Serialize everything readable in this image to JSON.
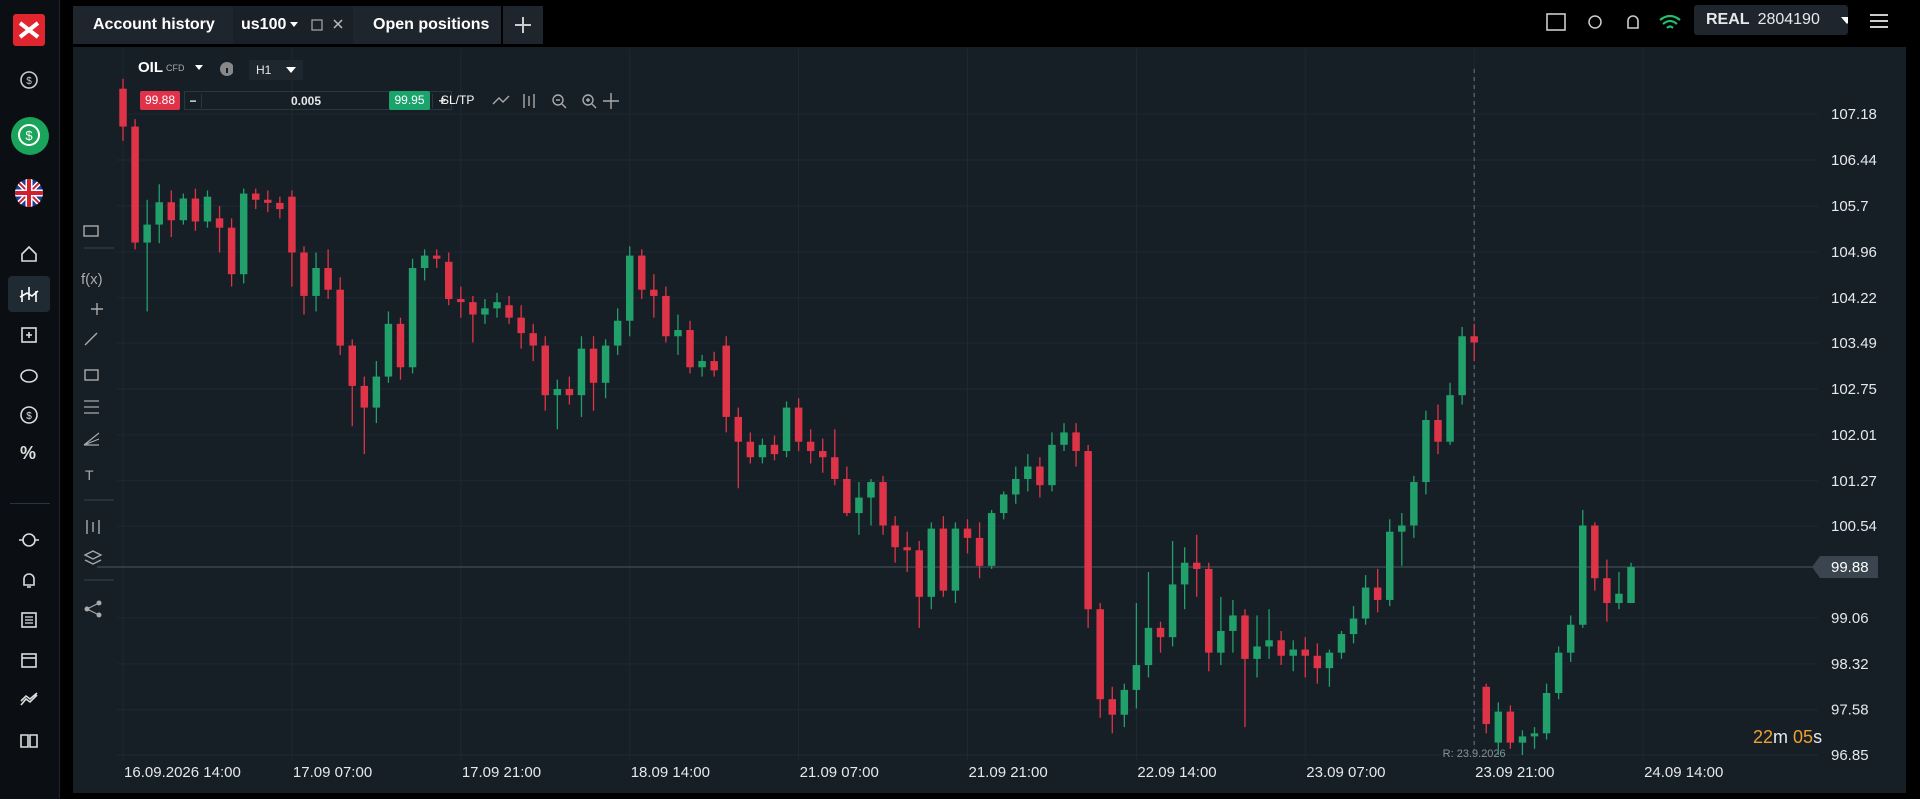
{
  "topbar": {
    "tabs": [
      "Account history",
      "us100",
      "Open positions"
    ],
    "account_type": "REAL",
    "account_number": "2804190"
  },
  "chart_header": {
    "symbol": "OIL",
    "instrument": "CFD",
    "timeframe": "H1",
    "sell_price": "99.88",
    "volume": "0.005",
    "buy_price": "99.95",
    "sltp": "SL/TP"
  },
  "toolbar": {
    "functions": "f(x)",
    "text_tool": "T"
  },
  "sidebar": {
    "percent": "%"
  },
  "chart_data": {
    "type": "candlestick",
    "up_color": "#22a06b",
    "down_color": "#df3448",
    "grid": true,
    "ylim": [
      96.77,
      108.23
    ],
    "yticks": [
      107.18,
      106.44,
      105.7,
      104.96,
      104.22,
      103.49,
      102.75,
      102.01,
      101.27,
      100.54,
      99.06,
      98.32,
      97.58,
      96.85
    ],
    "xlim": [
      -0.5,
      140.5
    ],
    "xticks": [
      {
        "value": 0,
        "label": "16.09.2026 14:00"
      },
      {
        "value": 14,
        "label": "17.09 07:00"
      },
      {
        "value": 28,
        "label": "17.09 21:00"
      },
      {
        "value": 42,
        "label": "18.09 14:00"
      },
      {
        "value": 56,
        "label": "21.09 07:00"
      },
      {
        "value": 70,
        "label": "21.09 21:00"
      },
      {
        "value": 84,
        "label": "22.09 14:00"
      },
      {
        "value": 98,
        "label": "23.09 07:00"
      },
      {
        "value": 112,
        "label": "23.09 21:00"
      },
      {
        "value": 126,
        "label": "24.09 14:00"
      }
    ],
    "current_price": 99.88,
    "rollover": {
      "x": 112,
      "label": "R: 23.9.2026"
    },
    "countdown": [
      "22",
      "m ",
      "05",
      "s"
    ],
    "ohlc": [
      [
        107.59,
        107.75,
        106.75,
        106.98
      ],
      [
        106.98,
        107.1,
        105.0,
        105.11
      ],
      [
        105.11,
        105.8,
        104.0,
        105.4
      ],
      [
        105.4,
        106.05,
        105.1,
        105.76
      ],
      [
        105.76,
        105.95,
        105.2,
        105.47
      ],
      [
        105.47,
        105.9,
        105.4,
        105.82
      ],
      [
        105.82,
        105.98,
        105.3,
        105.45
      ],
      [
        105.45,
        105.95,
        105.35,
        105.85
      ],
      [
        105.5,
        105.7,
        104.95,
        105.35
      ],
      [
        105.35,
        105.5,
        104.4,
        104.6
      ],
      [
        104.6,
        105.98,
        104.45,
        105.9
      ],
      [
        105.9,
        105.98,
        105.65,
        105.8
      ],
      [
        105.8,
        105.95,
        105.6,
        105.75
      ],
      [
        105.75,
        105.85,
        105.5,
        105.65
      ],
      [
        105.85,
        105.95,
        104.4,
        104.95
      ],
      [
        104.95,
        105.05,
        103.95,
        104.25
      ],
      [
        104.25,
        104.95,
        104.0,
        104.7
      ],
      [
        104.7,
        105.0,
        104.2,
        104.35
      ],
      [
        104.35,
        104.55,
        103.3,
        103.45
      ],
      [
        103.45,
        103.55,
        102.15,
        102.8
      ],
      [
        102.8,
        102.95,
        101.7,
        102.45
      ],
      [
        102.45,
        103.2,
        102.2,
        102.95
      ],
      [
        102.95,
        104.0,
        102.85,
        103.8
      ],
      [
        103.8,
        103.9,
        102.9,
        103.1
      ],
      [
        103.1,
        104.85,
        103.0,
        104.7
      ],
      [
        104.7,
        105.0,
        104.5,
        104.9
      ],
      [
        104.9,
        105.0,
        104.7,
        104.85
      ],
      [
        104.8,
        104.95,
        104.1,
        104.2
      ],
      [
        104.2,
        104.4,
        103.9,
        104.15
      ],
      [
        104.15,
        104.25,
        103.5,
        103.95
      ],
      [
        103.95,
        104.2,
        103.8,
        104.05
      ],
      [
        104.05,
        104.3,
        103.9,
        104.15
      ],
      [
        104.1,
        104.25,
        103.8,
        103.9
      ],
      [
        103.9,
        104.1,
        103.4,
        103.65
      ],
      [
        103.65,
        103.8,
        103.2,
        103.45
      ],
      [
        103.45,
        103.6,
        102.4,
        102.65
      ],
      [
        102.65,
        102.9,
        102.1,
        102.75
      ],
      [
        102.75,
        102.95,
        102.5,
        102.65
      ],
      [
        102.65,
        103.6,
        102.3,
        103.4
      ],
      [
        103.4,
        103.6,
        102.4,
        102.85
      ],
      [
        102.85,
        103.55,
        102.6,
        103.45
      ],
      [
        103.45,
        104.05,
        103.3,
        103.85
      ],
      [
        103.85,
        105.05,
        103.6,
        104.9
      ],
      [
        104.9,
        105.0,
        104.2,
        104.35
      ],
      [
        104.35,
        104.6,
        103.9,
        104.25
      ],
      [
        104.25,
        104.4,
        103.5,
        103.6
      ],
      [
        103.6,
        103.95,
        103.3,
        103.7
      ],
      [
        103.7,
        103.85,
        103.0,
        103.1
      ],
      [
        103.1,
        103.3,
        102.95,
        103.2
      ],
      [
        103.2,
        103.35,
        102.95,
        103.05
      ],
      [
        103.45,
        103.6,
        102.05,
        102.3
      ],
      [
        102.3,
        102.45,
        101.15,
        101.9
      ],
      [
        101.9,
        102.05,
        101.55,
        101.65
      ],
      [
        101.65,
        101.95,
        101.55,
        101.85
      ],
      [
        101.85,
        102.0,
        101.6,
        101.7
      ],
      [
        101.75,
        102.55,
        101.65,
        102.45
      ],
      [
        102.45,
        102.6,
        101.75,
        101.9
      ],
      [
        101.9,
        102.1,
        101.55,
        101.75
      ],
      [
        101.75,
        101.95,
        101.4,
        101.65
      ],
      [
        101.65,
        102.1,
        101.2,
        101.3
      ],
      [
        101.3,
        101.5,
        100.7,
        100.75
      ],
      [
        100.75,
        101.25,
        100.4,
        101.0
      ],
      [
        101.0,
        101.3,
        100.55,
        101.25
      ],
      [
        101.25,
        101.35,
        100.4,
        100.55
      ],
      [
        100.55,
        100.7,
        99.95,
        100.2
      ],
      [
        100.2,
        100.45,
        99.8,
        100.15
      ],
      [
        100.15,
        100.3,
        98.9,
        99.4
      ],
      [
        99.4,
        100.6,
        99.2,
        100.5
      ],
      [
        100.5,
        100.7,
        99.4,
        99.5
      ],
      [
        99.5,
        100.6,
        99.3,
        100.5
      ],
      [
        100.5,
        100.65,
        100.1,
        100.35
      ],
      [
        100.35,
        100.6,
        99.7,
        99.9
      ],
      [
        99.9,
        100.8,
        99.85,
        100.75
      ],
      [
        100.75,
        101.1,
        100.65,
        101.05
      ],
      [
        101.05,
        101.5,
        100.9,
        101.3
      ],
      [
        101.3,
        101.7,
        101.1,
        101.5
      ],
      [
        101.5,
        101.65,
        101.0,
        101.2
      ],
      [
        101.2,
        102.05,
        101.1,
        101.85
      ],
      [
        101.85,
        102.2,
        101.75,
        102.05
      ],
      [
        102.05,
        102.2,
        101.5,
        101.75
      ],
      [
        101.75,
        101.85,
        98.9,
        99.2
      ],
      [
        99.2,
        99.3,
        97.45,
        97.75
      ],
      [
        97.75,
        97.95,
        97.2,
        97.5
      ],
      [
        97.5,
        98.0,
        97.3,
        97.9
      ],
      [
        97.9,
        99.3,
        97.6,
        98.3
      ],
      [
        98.3,
        99.8,
        98.1,
        98.9
      ],
      [
        98.9,
        99.0,
        98.5,
        98.75
      ],
      [
        98.75,
        100.3,
        98.6,
        99.6
      ],
      [
        99.6,
        100.2,
        99.2,
        99.95
      ],
      [
        99.95,
        100.4,
        99.4,
        99.85
      ],
      [
        99.85,
        99.95,
        98.2,
        98.5
      ],
      [
        98.5,
        99.4,
        98.3,
        98.85
      ],
      [
        98.85,
        99.35,
        98.5,
        99.1
      ],
      [
        99.1,
        99.2,
        97.3,
        98.4
      ],
      [
        98.4,
        99.1,
        98.1,
        98.6
      ],
      [
        98.6,
        99.2,
        98.4,
        98.7
      ],
      [
        98.7,
        98.85,
        98.3,
        98.45
      ],
      [
        98.45,
        98.7,
        98.2,
        98.55
      ],
      [
        98.55,
        98.75,
        98.1,
        98.45
      ],
      [
        98.45,
        98.65,
        98.0,
        98.25
      ],
      [
        98.25,
        98.55,
        97.95,
        98.5
      ],
      [
        98.5,
        98.85,
        98.4,
        98.8
      ],
      [
        98.8,
        99.25,
        98.65,
        99.05
      ],
      [
        99.05,
        99.75,
        98.95,
        99.55
      ],
      [
        99.55,
        99.85,
        99.15,
        99.35
      ],
      [
        99.35,
        100.65,
        99.25,
        100.45
      ],
      [
        100.45,
        100.75,
        99.9,
        100.55
      ],
      [
        100.55,
        101.35,
        100.35,
        101.25
      ],
      [
        101.25,
        102.4,
        101.05,
        102.25
      ],
      [
        102.25,
        102.5,
        101.7,
        101.9
      ],
      [
        101.9,
        102.85,
        101.85,
        102.65
      ],
      [
        102.65,
        103.75,
        102.5,
        103.6
      ],
      [
        103.6,
        103.8,
        103.2,
        103.5
      ],
      [
        97.95,
        98.0,
        97.2,
        97.35
      ],
      [
        97.05,
        97.7,
        96.85,
        97.55
      ],
      [
        97.55,
        97.65,
        96.95,
        97.05
      ],
      [
        97.05,
        97.25,
        96.85,
        97.15
      ],
      [
        97.15,
        97.3,
        96.95,
        97.2
      ],
      [
        97.2,
        98.0,
        97.1,
        97.85
      ],
      [
        97.85,
        98.6,
        97.75,
        98.5
      ],
      [
        98.5,
        99.1,
        98.35,
        98.95
      ],
      [
        98.95,
        100.8,
        98.9,
        100.55
      ],
      [
        100.55,
        100.6,
        99.5,
        99.7
      ],
      [
        99.7,
        100.0,
        99.0,
        99.3
      ],
      [
        99.3,
        99.8,
        99.2,
        99.45
      ],
      [
        99.3,
        99.95,
        99.3,
        99.88
      ]
    ]
  }
}
